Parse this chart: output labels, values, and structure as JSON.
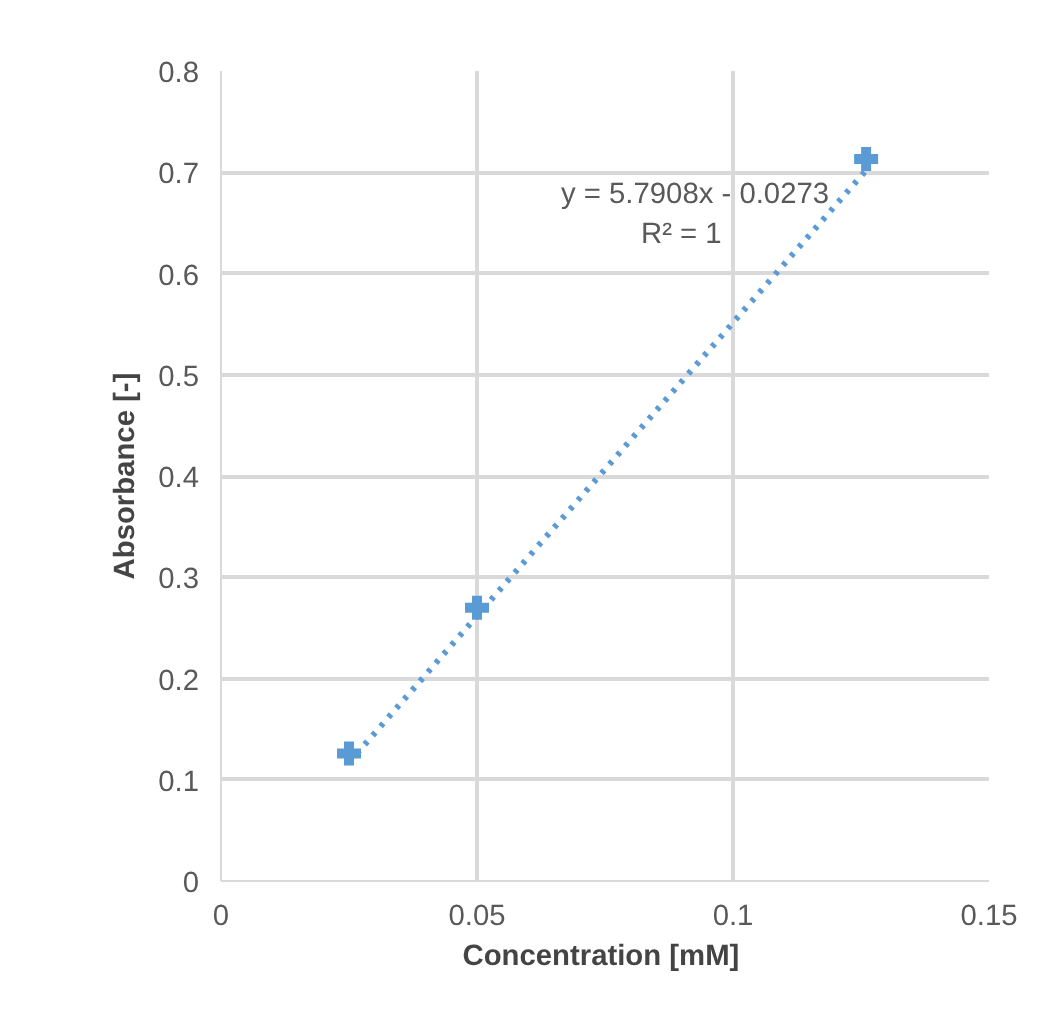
{
  "chart_data": {
    "type": "scatter",
    "xlabel": "Concentration  [mM]",
    "ylabel": "Absorbance [-]",
    "xlim": [
      0,
      0.15
    ],
    "xticks": [
      0,
      0.05,
      0.1,
      0.15
    ],
    "ylim": [
      0,
      0.8
    ],
    "yticks": [
      0,
      0.1,
      0.2,
      0.3,
      0.4,
      0.5,
      0.6,
      0.7,
      0.8
    ],
    "grid": true,
    "series": [
      {
        "color": "#5b9bd5",
        "marker": "cross",
        "x": [
          0.025,
          0.05,
          0.126
        ],
        "values": [
          0.126,
          0.27,
          0.713
        ]
      },
      {
        "type": "line",
        "color": "#5b9bd5",
        "line_style": "dotted",
        "marker": "none",
        "x": [
          0.025,
          0.126
        ],
        "values": [
          0.117,
          0.702
        ]
      }
    ],
    "annotations": [
      "y = 5.7908x - 0.0273",
      "R² = 1"
    ]
  }
}
